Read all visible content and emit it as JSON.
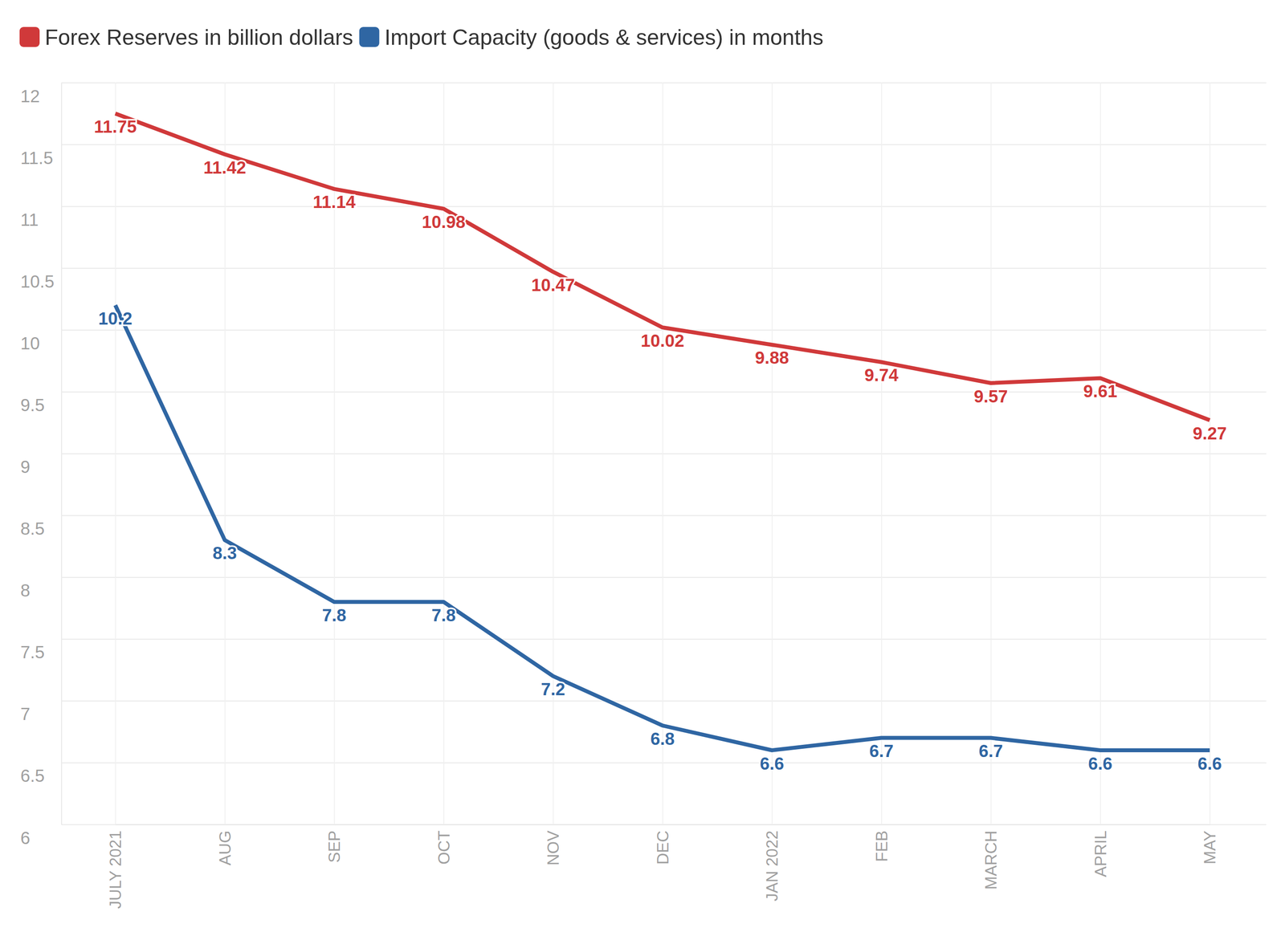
{
  "chart_data": {
    "type": "line",
    "categories": [
      "JULY 2021",
      "AUG",
      "SEP",
      "OCT",
      "NOV",
      "DEC",
      "JAN 2022",
      "FEB",
      "MARCH",
      "APRIL",
      "MAY"
    ],
    "series": [
      {
        "name": "Forex Reserves in billion dollars",
        "color": "#d0393a",
        "values": [
          11.75,
          11.42,
          11.14,
          10.98,
          10.47,
          10.02,
          9.88,
          9.74,
          9.57,
          9.61,
          9.27
        ]
      },
      {
        "name": "Import Capacity (goods & services) in months",
        "color": "#2f66a3",
        "values": [
          10.2,
          8.3,
          7.8,
          7.8,
          7.2,
          6.8,
          6.6,
          6.7,
          6.7,
          6.6,
          6.6
        ]
      }
    ],
    "ylim": [
      6,
      12
    ],
    "yticks": [
      6,
      6.5,
      7,
      7.5,
      8,
      8.5,
      9,
      9.5,
      10,
      10.5,
      11,
      11.5,
      12
    ],
    "grid": true,
    "legend": "top-left",
    "data_labels": true
  }
}
